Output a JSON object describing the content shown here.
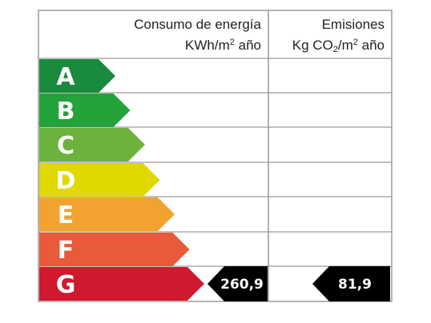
{
  "header": {
    "energy_line1": "Consumo de energía",
    "energy_line2_prefix": "KWh/m",
    "energy_line2_sup": "2",
    "energy_line2_suffix": " año",
    "emissions_line1": "Emisiones",
    "emissions_line2_a": "Kg CO",
    "emissions_line2_sub": "2",
    "emissions_line2_b": "/m",
    "emissions_line2_sup": "2",
    "emissions_line2_c": " año"
  },
  "ratings": [
    {
      "letter": "A",
      "color": "#1a8a3e"
    },
    {
      "letter": "B",
      "color": "#24a33a"
    },
    {
      "letter": "C",
      "color": "#6cb33e"
    },
    {
      "letter": "D",
      "color": "#e1d800"
    },
    {
      "letter": "E",
      "color": "#f2a22e"
    },
    {
      "letter": "F",
      "color": "#e85a3a"
    },
    {
      "letter": "G",
      "color": "#d0182e"
    }
  ],
  "energy_value": "260,9",
  "emissions_value": "81,9",
  "selected_rating": "G",
  "pointer_color": "#000000"
}
